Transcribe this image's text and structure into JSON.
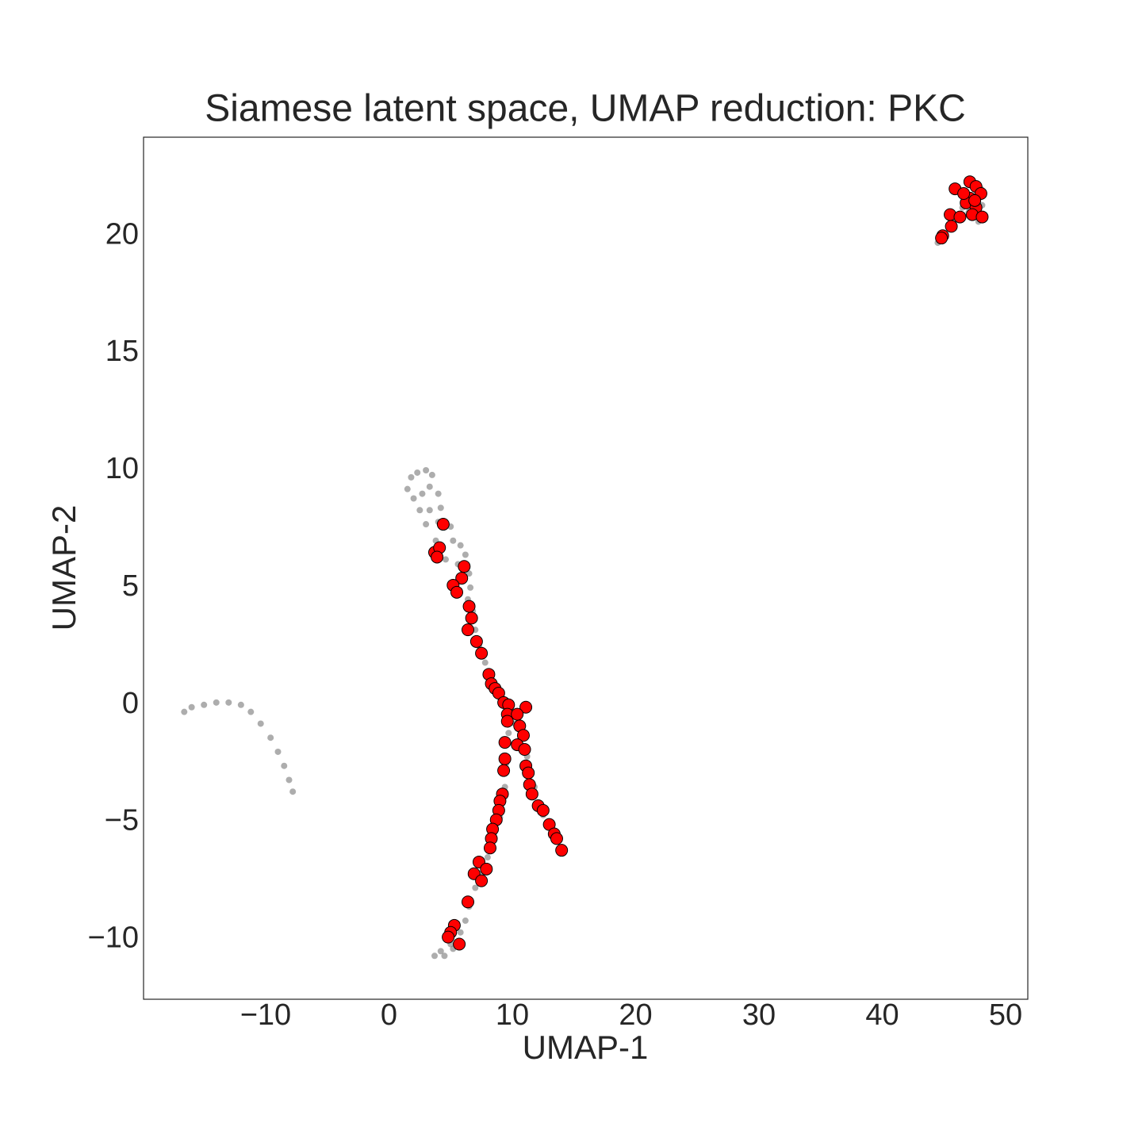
{
  "chart_data": {
    "type": "scatter",
    "title": "Siamese latent space, UMAP reduction: PKC",
    "xlabel": "UMAP-1",
    "ylabel": "UMAP-2",
    "xlim": [
      -19.9,
      51.8
    ],
    "ylim": [
      -12.55,
      24.2
    ],
    "xticks": [
      {
        "value": -10,
        "label": "−10"
      },
      0,
      10,
      20,
      30,
      40,
      50
    ],
    "yticks": [
      {
        "value": -10,
        "label": "−10"
      },
      {
        "value": -5,
        "label": "−5"
      },
      0,
      5,
      10,
      15,
      20
    ],
    "grid": false,
    "series": [
      {
        "color": "#777777",
        "x": [
          -16.6,
          -16,
          -15,
          -14,
          -13,
          -12,
          -11.2,
          -10.4,
          -9.6,
          -9,
          -8.5,
          -8.1,
          -7.8,
          1.5,
          1.8,
          2.3,
          3.0,
          3.5,
          2,
          2.7,
          3.3,
          4.0,
          2.5,
          3.3,
          4.2,
          3.0,
          4.0,
          5.0,
          3.8,
          5.2,
          5.8,
          4.6,
          5.6,
          6.2,
          6.5,
          6.6,
          6.4,
          6.8,
          7.0,
          7.3,
          7.8,
          8.2,
          8.8,
          9.5,
          9.7,
          10.2,
          10.6,
          9.5,
          11.2,
          9.4,
          11.8,
          9.0,
          12.5,
          13.5,
          8.5,
          8.0,
          7.5,
          7.0,
          6.5,
          6.2,
          5.8,
          5.0,
          4.2,
          3.7,
          4.5,
          5.2,
          44.5,
          45,
          46,
          47,
          47.5,
          48,
          47.8,
          48.1,
          46.5,
          47.2,
          48
        ],
        "values": [
          -0.3,
          -0.1,
          0.0,
          0.1,
          0.1,
          0.0,
          -0.3,
          -0.8,
          -1.4,
          -2.0,
          -2.6,
          -3.2,
          -3.7,
          9.2,
          9.7,
          9.9,
          10.0,
          9.8,
          8.8,
          9.0,
          9.3,
          9.0,
          8.3,
          8.3,
          8.4,
          7.7,
          7.8,
          7.6,
          7.0,
          7.0,
          6.8,
          6.2,
          6.0,
          6.4,
          5.6,
          5.0,
          4.5,
          4.0,
          3.2,
          2.5,
          1.8,
          1.0,
          0.4,
          -0.2,
          -1.2,
          -0.8,
          -1.5,
          -2.5,
          -2.2,
          -3.5,
          -3.5,
          -4.8,
          -4.7,
          -5.6,
          -5.5,
          -6.5,
          -7.2,
          -7.8,
          -8.6,
          -9.2,
          -9.7,
          -10.2,
          -10.5,
          -10.7,
          -10.7,
          -10.4,
          19.7,
          20.1,
          20.7,
          21,
          21.5,
          22,
          20.6,
          21.3,
          21.2,
          22.2,
          20.9
        ]
      },
      {
        "color": "#ff0000",
        "x": [
          4.4,
          3.7,
          4.1,
          3.9,
          6.1,
          5.9,
          5.2,
          5.5,
          6.5,
          6.7,
          6.4,
          7.1,
          7.5,
          8.1,
          8.3,
          8.6,
          8.9,
          9.3,
          9.7,
          11.1,
          9.6,
          10.4,
          9.6,
          10.6,
          10.9,
          9.4,
          10.4,
          11.0,
          9.4,
          11.1,
          9.3,
          11.3,
          11.4,
          11.6,
          9.2,
          9.0,
          8.9,
          12.1,
          12.5,
          8.7,
          8.4,
          13.0,
          13.4,
          8.3,
          13.6,
          8.2,
          14.0,
          7.3,
          7.9,
          6.9,
          7.5,
          6.4,
          5.3,
          5.0,
          4.8,
          5.7,
          47.1,
          45.9,
          47.6,
          48.0,
          47.1,
          46.8,
          47.6,
          45.5,
          46.3,
          47.3,
          48.1,
          45.6,
          44.9,
          44.8,
          46.6,
          47.5
        ],
        "values": [
          7.7,
          6.5,
          6.7,
          6.3,
          5.9,
          5.4,
          5.1,
          4.8,
          4.2,
          3.7,
          3.2,
          2.7,
          2.2,
          1.3,
          0.9,
          0.7,
          0.5,
          0.1,
          0.0,
          -0.1,
          -0.4,
          -0.4,
          -0.7,
          -0.9,
          -1.3,
          -1.6,
          -1.7,
          -1.9,
          -2.3,
          -2.6,
          -2.8,
          -2.9,
          -3.4,
          -3.8,
          -3.8,
          -4.1,
          -4.5,
          -4.3,
          -4.5,
          -4.9,
          -5.3,
          -5.1,
          -5.5,
          -5.7,
          -5.7,
          -6.1,
          -6.2,
          -6.7,
          -7.0,
          -7.2,
          -7.5,
          -8.4,
          -9.4,
          -9.7,
          -9.9,
          -10.2,
          22.3,
          22.0,
          22.1,
          21.8,
          21.6,
          21.4,
          21.2,
          20.9,
          20.8,
          20.9,
          20.8,
          20.4,
          20.0,
          19.9,
          21.8,
          21.5
        ]
      }
    ]
  }
}
